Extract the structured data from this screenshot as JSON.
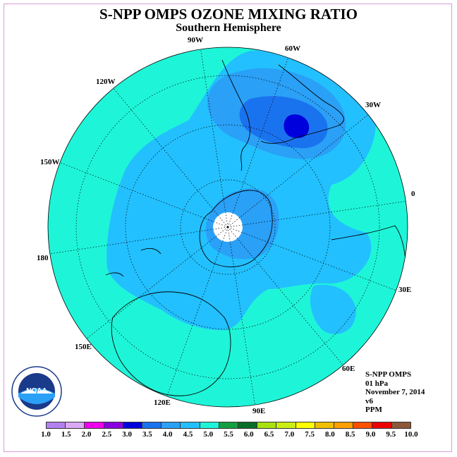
{
  "title": "S-NPP OMPS OZONE MIXING RATIO",
  "subtitle": "Southern Hemisphere",
  "longitude_labels": {
    "lon_90w": "90W",
    "lon_60w": "60W",
    "lon_30w": "30W",
    "lon_0": "0",
    "lon_30e": "30E",
    "lon_60e": "60E",
    "lon_90e": "90E",
    "lon_120e": "120E",
    "lon_150e": "150E",
    "lon_180": "180",
    "lon_150w": "150W",
    "lon_120w": "120W"
  },
  "info": {
    "instrument": "S-NPP OMPS",
    "level": "01 hPa",
    "date": "November 7, 2014",
    "version": "v6",
    "units": "PPM"
  },
  "logo_text": "NOAA",
  "colorbar": {
    "ticks": [
      "1.0",
      "1.5",
      "2.0",
      "2.5",
      "3.0",
      "3.5",
      "4.0",
      "4.5",
      "5.0",
      "5.5",
      "6.0",
      "6.5",
      "7.0",
      "7.5",
      "8.0",
      "8.5",
      "9.0",
      "9.5",
      "10.0"
    ],
    "colors": [
      "#b380f0",
      "#dba8f5",
      "#ee00ee",
      "#8a00e0",
      "#0000dd",
      "#1a73ee",
      "#2aa0f7",
      "#22c0ff",
      "#1ef5d8",
      "#13a040",
      "#0b6e28",
      "#a8e012",
      "#ccef12",
      "#ffff00",
      "#f0c000",
      "#ffa000",
      "#ff5000",
      "#ee0000",
      "#8c5838"
    ]
  },
  "map_colors": {
    "background": "#1ef5d8",
    "level_4_5": "#22c0ff",
    "level_4_0": "#2aa0f7",
    "level_3_5": "#1a73ee",
    "level_3_0": "#0000dd",
    "pole_hole": "#ffffff"
  }
}
